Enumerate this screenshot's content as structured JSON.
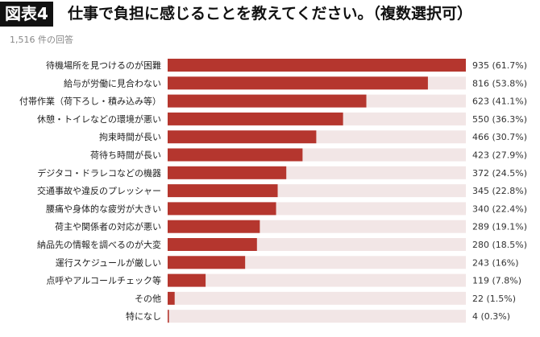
{
  "header": {
    "figure_label": "図表4",
    "title": "仕事で負担に感じることを教えてください。（複数選択可）"
  },
  "respondents": "1,516 件の回答",
  "chart_data": {
    "type": "bar",
    "orientation": "horizontal",
    "title": "仕事で負担に感じることを教えてください。（複数選択可）",
    "total": 1516,
    "bar_color": "#b5362e",
    "track_color": "#f2e6e6",
    "categories": [
      "待機場所を見つけるのが困難",
      "給与が労働に見合わない",
      "付帯作業（荷下ろし・積み込み等）",
      "休憩・トイレなどの環境が悪い",
      "拘束時間が長い",
      "荷待ち時間が長い",
      "デジタコ・ドラレコなどの機器",
      "交通事故や違反のプレッシャー",
      "腰痛や身体的な疲労が大きい",
      "荷主や関係者の対応が悪い",
      "納品先の情報を調べるのが大変",
      "運行スケジュールが厳しい",
      "点呼やアルコールチェック等",
      "その他",
      "特になし"
    ],
    "values": [
      935,
      816,
      623,
      550,
      466,
      423,
      372,
      345,
      340,
      289,
      280,
      243,
      119,
      22,
      4
    ],
    "value_labels": [
      "935 (61.7%)",
      "816 (53.8%)",
      "623 (41.1%)",
      "550 (36.3%)",
      "466 (30.7%)",
      "423 (27.9%)",
      "372 (24.5%)",
      "345 (22.8%)",
      "340 (22.4%)",
      "289 (19.1%)",
      "280 (18.5%)",
      "243 (16%)",
      "119 (7.8%)",
      "22 (1.5%)",
      "4 (0.3%)"
    ],
    "xlim": [
      0,
      935
    ]
  }
}
